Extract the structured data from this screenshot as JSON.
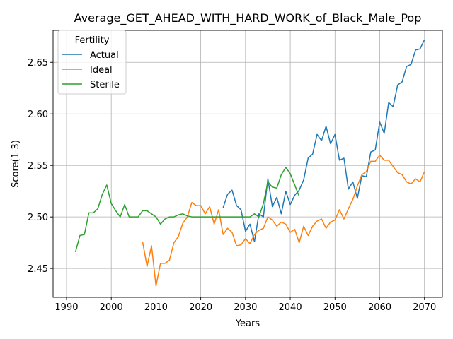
{
  "chart_data": {
    "type": "line",
    "title": "Average_GET_AHEAD_WITH_HARD_WORK_of_Black_Male_Pop",
    "xlabel": "Years",
    "ylabel": "Score(1-3)",
    "xlim": [
      1987,
      2074
    ],
    "ylim": [
      2.422,
      2.681
    ],
    "x_ticks": [
      1990,
      2000,
      2010,
      2020,
      2030,
      2040,
      2050,
      2060,
      2070
    ],
    "y_ticks": [
      2.45,
      2.5,
      2.55,
      2.6,
      2.65
    ],
    "y_tick_labels": [
      "2.45",
      "2.50",
      "2.55",
      "2.60",
      "2.65"
    ],
    "grid": true,
    "legend": {
      "title": "Fertility",
      "placement": "top-left"
    },
    "series": [
      {
        "name": "Actual",
        "color": "#1f77b4",
        "x": [
          2025,
          2026,
          2027,
          2028,
          2029,
          2030,
          2031,
          2032,
          2033,
          2034,
          2035,
          2036,
          2037,
          2038,
          2039,
          2040,
          2041,
          2042,
          2043,
          2044,
          2045,
          2046,
          2047,
          2048,
          2049,
          2050,
          2051,
          2052,
          2053,
          2054,
          2055,
          2056,
          2057,
          2058,
          2059,
          2060,
          2061,
          2062,
          2063,
          2064,
          2065,
          2066,
          2067,
          2068,
          2069,
          2070
        ],
        "values": [
          2.509,
          2.522,
          2.526,
          2.511,
          2.507,
          2.486,
          2.493,
          2.476,
          2.503,
          2.5,
          2.537,
          2.51,
          2.519,
          2.503,
          2.525,
          2.512,
          2.521,
          2.526,
          2.536,
          2.557,
          2.561,
          2.58,
          2.574,
          2.588,
          2.571,
          2.58,
          2.555,
          2.557,
          2.527,
          2.534,
          2.518,
          2.54,
          2.539,
          2.563,
          2.565,
          2.592,
          2.581,
          2.611,
          2.607,
          2.628,
          2.631,
          2.646,
          2.648,
          2.662,
          2.663,
          2.672
        ]
      },
      {
        "name": "Ideal",
        "color": "#ff7f0e",
        "x": [
          2007,
          2008,
          2009,
          2010,
          2011,
          2012,
          2013,
          2014,
          2015,
          2016,
          2017,
          2018,
          2019,
          2020,
          2021,
          2022,
          2023,
          2024,
          2025,
          2026,
          2027,
          2028,
          2029,
          2030,
          2031,
          2032,
          2033,
          2034,
          2035,
          2036,
          2037,
          2038,
          2039,
          2040,
          2041,
          2042,
          2043,
          2044,
          2045,
          2046,
          2047,
          2048,
          2049,
          2050,
          2051,
          2052,
          2053,
          2054,
          2055,
          2056,
          2057,
          2058,
          2059,
          2060,
          2061,
          2062,
          2063,
          2064,
          2065,
          2066,
          2067,
          2068,
          2069,
          2070
        ],
        "values": [
          2.476,
          2.452,
          2.472,
          2.433,
          2.455,
          2.455,
          2.458,
          2.475,
          2.481,
          2.494,
          2.5,
          2.514,
          2.511,
          2.511,
          2.503,
          2.51,
          2.493,
          2.507,
          2.483,
          2.489,
          2.485,
          2.472,
          2.473,
          2.479,
          2.474,
          2.483,
          2.487,
          2.489,
          2.5,
          2.497,
          2.491,
          2.495,
          2.493,
          2.485,
          2.488,
          2.475,
          2.491,
          2.482,
          2.491,
          2.496,
          2.498,
          2.489,
          2.495,
          2.497,
          2.507,
          2.498,
          2.508,
          2.517,
          2.53,
          2.541,
          2.544,
          2.554,
          2.554,
          2.56,
          2.555,
          2.555,
          2.549,
          2.543,
          2.541,
          2.534,
          2.532,
          2.537,
          2.534,
          2.544
        ]
      },
      {
        "name": "Sterile",
        "color": "#2ca02c",
        "x": [
          1992,
          1993,
          1994,
          1995,
          1996,
          1997,
          1998,
          1999,
          2000,
          2001,
          2002,
          2003,
          2004,
          2005,
          2006,
          2007,
          2008,
          2009,
          2010,
          2011,
          2012,
          2013,
          2014,
          2015,
          2016,
          2017,
          2018,
          2019,
          2020,
          2021,
          2022,
          2023,
          2024,
          2025,
          2026,
          2027,
          2028,
          2029,
          2030,
          2031,
          2032,
          2033,
          2034,
          2035,
          2036,
          2037,
          2038,
          2039,
          2040,
          2041,
          2042
        ],
        "values": [
          2.466,
          2.482,
          2.483,
          2.504,
          2.504,
          2.508,
          2.522,
          2.531,
          2.513,
          2.506,
          2.5,
          2.512,
          2.5,
          2.5,
          2.5,
          2.506,
          2.506,
          2.503,
          2.5,
          2.493,
          2.498,
          2.5,
          2.5,
          2.502,
          2.503,
          2.501,
          2.5,
          2.5,
          2.5,
          2.5,
          2.5,
          2.5,
          2.5,
          2.5,
          2.5,
          2.5,
          2.5,
          2.5,
          2.5,
          2.5,
          2.503,
          2.5,
          2.513,
          2.534,
          2.529,
          2.528,
          2.541,
          2.548,
          2.542,
          2.531,
          2.52
        ]
      }
    ]
  }
}
